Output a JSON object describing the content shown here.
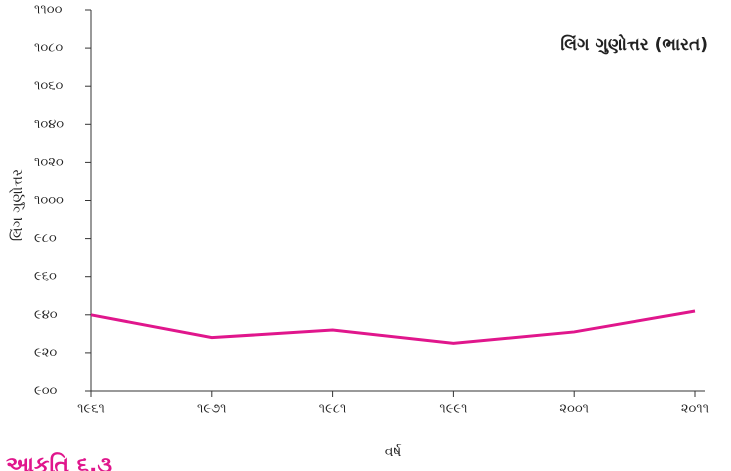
{
  "chart_data": {
    "type": "line",
    "title": "લિંગ ગુણોત્તર (ભારત)",
    "y_label": "લિંગ ગુણોત્તર",
    "x_label": "વર્ષ",
    "annotation": "આકૃતિ ૬.૩",
    "x": [
      1961,
      1971,
      1981,
      1991,
      2001,
      2011
    ],
    "series": [
      {
        "name": "લિંગ ગુણોત્તર (ભારત)",
        "color": "#e0168c",
        "values": [
          940,
          928,
          932,
          925,
          931,
          942
        ]
      }
    ],
    "xlim": [
      1961,
      2011
    ],
    "xticks": [
      {
        "value": 1961,
        "label": "૧૯૬૧"
      },
      {
        "value": 1971,
        "label": "૧૯૭૧"
      },
      {
        "value": 1981,
        "label": "૧૯૮૧"
      },
      {
        "value": 1991,
        "label": "૧૯૯૧"
      },
      {
        "value": 2001,
        "label": "૨૦૦૧"
      },
      {
        "value": 2011,
        "label": "૨૦૧૧"
      }
    ],
    "ylim": [
      900,
      1100
    ],
    "yticks": [
      {
        "value": 900,
        "label": "૯૦૦"
      },
      {
        "value": 920,
        "label": "૯૨૦"
      },
      {
        "value": 940,
        "label": "૯૪૦"
      },
      {
        "value": 960,
        "label": "૯૬૦"
      },
      {
        "value": 980,
        "label": "૯૮૦"
      },
      {
        "value": 1000,
        "label": "૧૦૦૦"
      },
      {
        "value": 1020,
        "label": "૧૦૨૦"
      },
      {
        "value": 1040,
        "label": "૧૦૪૦"
      },
      {
        "value": 1060,
        "label": "૧૦૬૦"
      },
      {
        "value": 1080,
        "label": "૧૦૮૦"
      },
      {
        "value": 1100,
        "label": "૧૧૦૦"
      }
    ],
    "grid": false
  }
}
